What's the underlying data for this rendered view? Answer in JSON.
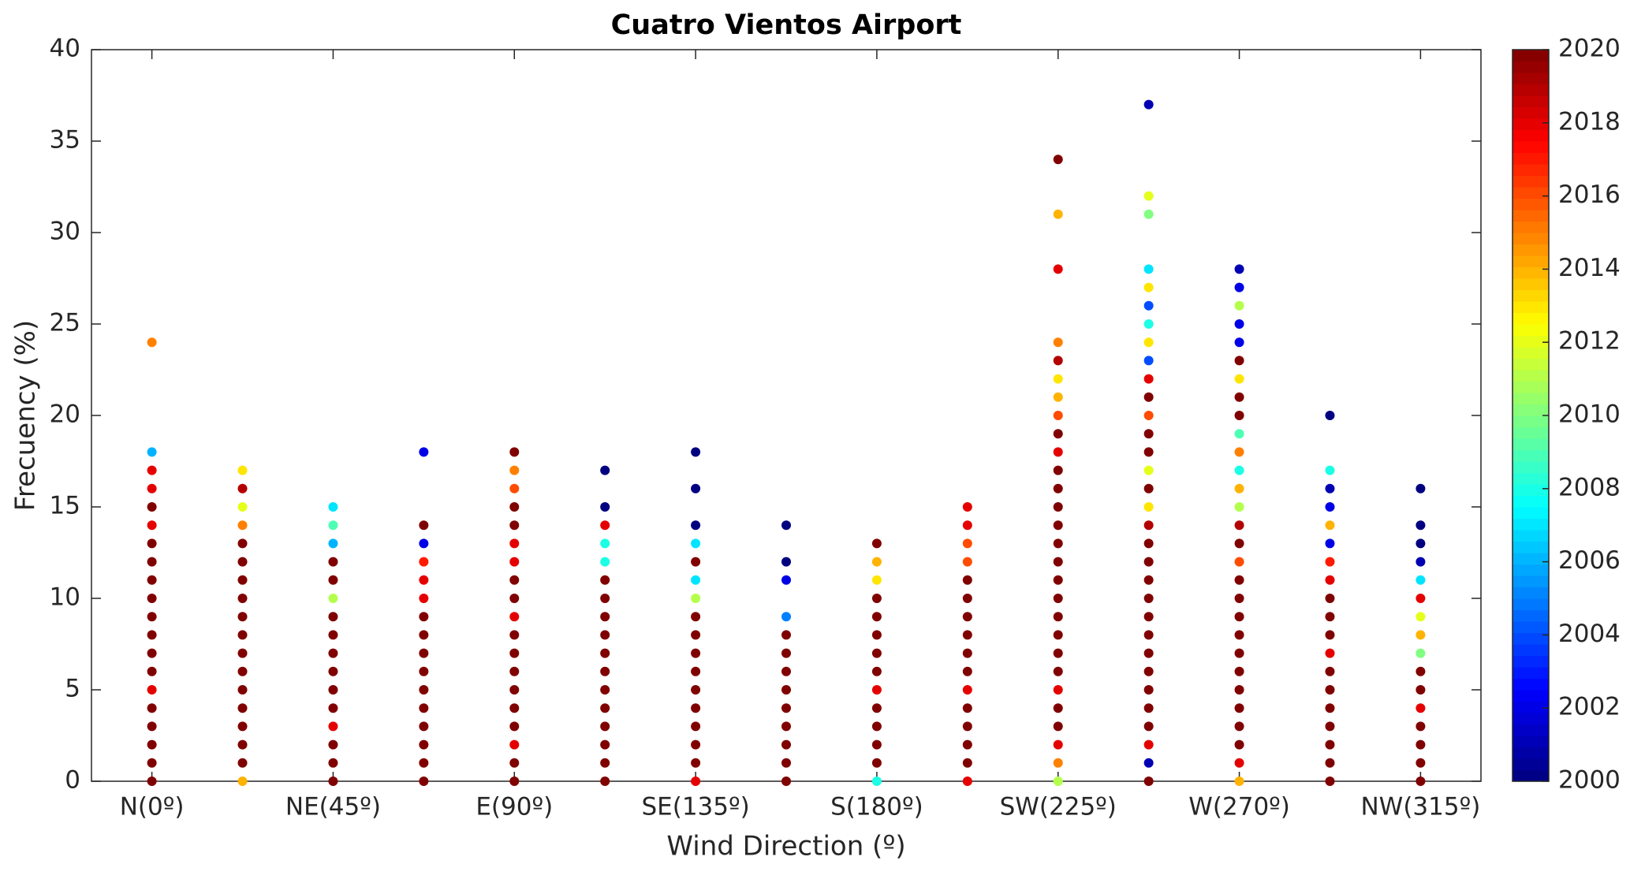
{
  "chart_data": {
    "type": "scatter",
    "title": "Cuatro Vientos Airport",
    "x_label": "Wind Direction (º)",
    "y_label": "Frecuency (%)",
    "xlim": [
      -15,
      330
    ],
    "ylim": [
      0,
      40
    ],
    "xticks": [
      {
        "value": 0,
        "label": "N(0º)"
      },
      {
        "value": 45,
        "label": "NE(45º)"
      },
      {
        "value": 90,
        "label": "E(90º)"
      },
      {
        "value": 135,
        "label": "SE(135º)"
      },
      {
        "value": 180,
        "label": "S(180º)"
      },
      {
        "value": 225,
        "label": "SW(225º)"
      },
      {
        "value": 270,
        "label": "W(270º)"
      },
      {
        "value": 315,
        "label": "NW(315º)"
      }
    ],
    "yticks": [
      0,
      5,
      10,
      15,
      20,
      25,
      30,
      35,
      40
    ],
    "colormap": "jet",
    "clim": [
      2000,
      2020
    ],
    "cticks": [
      2000,
      2002,
      2004,
      2006,
      2008,
      2010,
      2012,
      2014,
      2016,
      2018,
      2020
    ],
    "groups": [
      {
        "x": 0,
        "values": [
          0,
          1,
          2,
          3,
          4,
          5,
          6,
          7,
          8,
          9,
          10,
          11,
          12,
          13,
          14,
          15,
          16,
          17,
          18,
          24
        ],
        "years": [
          2020,
          2020,
          2020,
          2020,
          2020,
          2018,
          2020,
          2020,
          2020,
          2020,
          2020,
          2020,
          2020,
          2020,
          2018,
          2020,
          2018,
          2018,
          2006,
          2015
        ]
      },
      {
        "x": 22.5,
        "values": [
          0,
          1,
          2,
          3,
          4,
          5,
          6,
          7,
          8,
          9,
          10,
          11,
          12,
          13,
          14,
          15,
          16,
          17
        ],
        "years": [
          2014,
          2020,
          2020,
          2020,
          2020,
          2020,
          2020,
          2020,
          2020,
          2020,
          2020,
          2020,
          2020,
          2020,
          2015,
          2012,
          2019,
          2013
        ]
      },
      {
        "x": 45,
        "values": [
          0,
          1,
          2,
          3,
          4,
          5,
          6,
          7,
          8,
          9,
          10,
          11,
          12,
          13,
          14,
          15
        ],
        "years": [
          2020,
          2020,
          2020,
          2018,
          2020,
          2020,
          2020,
          2020,
          2020,
          2020,
          2011,
          2020,
          2020,
          2006,
          2009,
          2007
        ]
      },
      {
        "x": 67.5,
        "values": [
          0,
          1,
          2,
          3,
          4,
          5,
          6,
          7,
          8,
          9,
          10,
          11,
          12,
          13,
          14,
          18
        ],
        "years": [
          2020,
          2020,
          2020,
          2020,
          2020,
          2020,
          2020,
          2020,
          2020,
          2020,
          2018,
          2018,
          2017,
          2002,
          2020,
          2002
        ]
      },
      {
        "x": 90,
        "values": [
          0,
          1,
          2,
          3,
          4,
          5,
          6,
          7,
          8,
          9,
          10,
          11,
          12,
          13,
          14,
          15,
          16,
          17,
          18
        ],
        "years": [
          2020,
          2020,
          2018,
          2020,
          2020,
          2020,
          2020,
          2020,
          2020,
          2018,
          2020,
          2020,
          2018,
          2018,
          2020,
          2020,
          2016,
          2015,
          2020
        ]
      },
      {
        "x": 112.5,
        "values": [
          0,
          1,
          2,
          3,
          4,
          5,
          6,
          7,
          8,
          9,
          10,
          11,
          12,
          13,
          14,
          15,
          17
        ],
        "years": [
          2020,
          2020,
          2020,
          2020,
          2020,
          2020,
          2020,
          2020,
          2020,
          2020,
          2020,
          2020,
          2008,
          2008,
          2018,
          2000,
          2000
        ]
      },
      {
        "x": 135,
        "values": [
          0,
          1,
          2,
          3,
          4,
          5,
          6,
          7,
          8,
          9,
          10,
          11,
          12,
          13,
          14,
          16,
          18
        ],
        "years": [
          2018,
          2020,
          2020,
          2020,
          2020,
          2020,
          2020,
          2020,
          2020,
          2020,
          2011,
          2007,
          2020,
          2007,
          2000,
          2000,
          2000
        ]
      },
      {
        "x": 157.5,
        "values": [
          0,
          1,
          2,
          3,
          4,
          5,
          6,
          7,
          8,
          9,
          11,
          12,
          14
        ],
        "years": [
          2020,
          2020,
          2020,
          2020,
          2020,
          2020,
          2020,
          2020,
          2020,
          2005,
          2002,
          2000,
          2000
        ]
      },
      {
        "x": 180,
        "values": [
          0,
          1,
          2,
          3,
          4,
          5,
          6,
          7,
          8,
          9,
          10,
          11,
          12,
          13
        ],
        "years": [
          2008,
          2020,
          2020,
          2020,
          2020,
          2018,
          2020,
          2020,
          2020,
          2020,
          2020,
          2013,
          2014,
          2020
        ]
      },
      {
        "x": 202.5,
        "values": [
          0,
          1,
          2,
          3,
          4,
          5,
          6,
          7,
          8,
          9,
          10,
          11,
          12,
          13,
          14,
          15
        ],
        "years": [
          2018,
          2020,
          2020,
          2020,
          2020,
          2018,
          2020,
          2020,
          2020,
          2020,
          2020,
          2020,
          2016,
          2016,
          2018,
          2018
        ]
      },
      {
        "x": 225,
        "values": [
          0,
          1,
          2,
          3,
          4,
          5,
          6,
          7,
          8,
          9,
          10,
          11,
          12,
          13,
          14,
          15,
          16,
          17,
          18,
          19,
          20,
          21,
          22,
          23,
          24,
          28,
          31,
          34
        ],
        "years": [
          2011,
          2015,
          2018,
          2020,
          2020,
          2018,
          2020,
          2020,
          2020,
          2020,
          2020,
          2020,
          2020,
          2020,
          2020,
          2020,
          2020,
          2020,
          2018,
          2020,
          2016,
          2014,
          2013,
          2019,
          2015,
          2018,
          2014,
          2020
        ]
      },
      {
        "x": 247.5,
        "values": [
          0,
          1,
          2,
          3,
          4,
          5,
          6,
          7,
          8,
          9,
          10,
          11,
          12,
          13,
          14,
          15,
          16,
          17,
          18,
          19,
          20,
          21,
          22,
          23,
          24,
          25,
          26,
          27,
          28,
          31,
          32,
          37
        ],
        "years": [
          2020,
          2001,
          2018,
          2020,
          2020,
          2020,
          2020,
          2020,
          2020,
          2020,
          2020,
          2020,
          2020,
          2020,
          2019,
          2013,
          2020,
          2012,
          2020,
          2020,
          2016,
          2020,
          2018,
          2004,
          2013,
          2008,
          2004,
          2013,
          2007,
          2010,
          2012,
          2001
        ]
      },
      {
        "x": 270,
        "values": [
          0,
          1,
          2,
          3,
          4,
          5,
          6,
          7,
          8,
          9,
          10,
          11,
          12,
          13,
          14,
          15,
          16,
          17,
          18,
          19,
          20,
          21,
          22,
          23,
          24,
          25,
          26,
          27,
          28
        ],
        "years": [
          2014,
          2018,
          2020,
          2020,
          2020,
          2020,
          2020,
          2020,
          2020,
          2020,
          2020,
          2020,
          2016,
          2020,
          2019,
          2011,
          2014,
          2008,
          2015,
          2009,
          2020,
          2020,
          2013,
          2020,
          2002,
          2002,
          2011,
          2002,
          2001
        ]
      },
      {
        "x": 292.5,
        "values": [
          0,
          1,
          2,
          3,
          4,
          5,
          6,
          7,
          8,
          9,
          10,
          11,
          12,
          13,
          14,
          15,
          16,
          17,
          20
        ],
        "years": [
          2020,
          2020,
          2020,
          2020,
          2020,
          2020,
          2020,
          2018,
          2020,
          2020,
          2020,
          2018,
          2017,
          2002,
          2014,
          2002,
          2001,
          2008,
          2000
        ]
      },
      {
        "x": 315,
        "values": [
          0,
          1,
          2,
          3,
          4,
          5,
          6,
          7,
          8,
          9,
          10,
          11,
          12,
          13,
          14,
          16
        ],
        "years": [
          2020,
          2020,
          2020,
          2020,
          2018,
          2020,
          2020,
          2010,
          2014,
          2012,
          2018,
          2007,
          2001,
          2000,
          2000,
          2000
        ]
      }
    ]
  }
}
